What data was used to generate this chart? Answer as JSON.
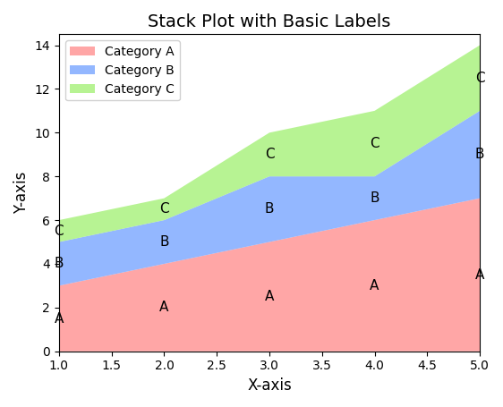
{
  "x": [
    1,
    2,
    3,
    4,
    5
  ],
  "category_a": [
    3,
    4,
    5,
    6,
    7
  ],
  "category_b": [
    2,
    2,
    3,
    2,
    4
  ],
  "category_c": [
    1,
    1,
    2,
    3,
    3
  ],
  "colors": [
    "#FF8080",
    "#6699FF",
    "#99EE66"
  ],
  "labels": [
    "Category A",
    "Category B",
    "Category C"
  ],
  "title": "Stack Plot with Basic Labels",
  "xlabel": "X-axis",
  "ylabel": "Y-axis",
  "ylim": [
    0,
    14.5
  ],
  "xlim": [
    1.0,
    5.0
  ],
  "figsize": [
    5.62,
    4.55
  ],
  "dpi": 100
}
